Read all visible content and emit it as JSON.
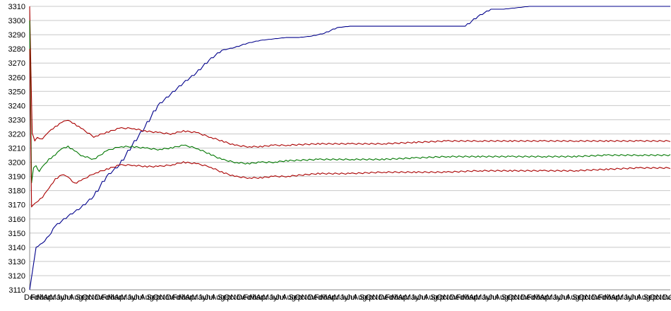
{
  "chart_data": {
    "type": "line",
    "title": "",
    "xlabel": "",
    "ylabel": "",
    "ylim": [
      3110,
      3310
    ],
    "y_ticks": [
      3110,
      3120,
      3130,
      3140,
      3150,
      3160,
      3170,
      3180,
      3190,
      3200,
      3210,
      3220,
      3230,
      3240,
      3250,
      3260,
      3270,
      3280,
      3290,
      3300,
      3310
    ],
    "x_tick_labels": [
      "Dec",
      "Feb",
      "Mar",
      "Apr",
      "May",
      "Jun",
      "Jul",
      "Aug",
      "Sep",
      "Oct",
      "Nov",
      "Dec",
      "Feb",
      "Mar",
      "Apr",
      "May",
      "Jun",
      "Jul",
      "Aug",
      "Sep",
      "Oct",
      "Nov",
      "Dec",
      "Feb",
      "Mar",
      "Apr",
      "May",
      "Jun",
      "Jul",
      "Aug",
      "Sep",
      "Oct",
      "Nov",
      "Dec",
      "Feb",
      "Mar",
      "Apr",
      "May",
      "Jun",
      "Jul",
      "Aug",
      "Sep",
      "Oct",
      "Nov",
      "Dec",
      "Feb",
      "Mar",
      "Apr",
      "May",
      "Jun",
      "Jul",
      "Aug",
      "Sep",
      "Oct",
      "Nov",
      "Dec",
      "Feb",
      "Mar",
      "Apr",
      "May",
      "Jun",
      "Jul",
      "Aug",
      "Sep",
      "Oct",
      "Nov",
      "Dec",
      "Feb",
      "Mar",
      "Apr",
      "May",
      "Jun",
      "Jul",
      "Aug",
      "Sep",
      "Oct",
      "Nov",
      "Dec",
      "Feb",
      "Mar",
      "Apr",
      "May",
      "Jun",
      "Jul",
      "Aug",
      "Sep",
      "Oct",
      "Nov",
      "Dec",
      "Feb",
      "Mar",
      "Apr",
      "May",
      "Jun",
      "Jul",
      "Aug",
      "Sep",
      "Oct",
      "Nov",
      "Dec",
      "Jan"
    ],
    "x_range": [
      0,
      100
    ],
    "grid": "horizontal",
    "legend": "none",
    "series": [
      {
        "color": "#00008b",
        "x": [
          0,
          0.5,
          1,
          2,
          3,
          4,
          6,
          8,
          10,
          12,
          14,
          16,
          18,
          20,
          22,
          24,
          26,
          28,
          30,
          32,
          34,
          36,
          38,
          40,
          42,
          44,
          46,
          48,
          50,
          52,
          54,
          56,
          58,
          60,
          62,
          64,
          66,
          68,
          70,
          72,
          74,
          76,
          78,
          80,
          85,
          90,
          95,
          100
        ],
        "y": [
          3110,
          3125,
          3140,
          3143,
          3148,
          3155,
          3162,
          3168,
          3176,
          3190,
          3198,
          3212,
          3225,
          3240,
          3248,
          3256,
          3263,
          3272,
          3279,
          3281,
          3284,
          3286,
          3287,
          3288,
          3288,
          3289,
          3291,
          3295,
          3296,
          3296,
          3296,
          3296,
          3296,
          3296,
          3296,
          3296,
          3296,
          3296,
          3303,
          3308,
          3308,
          3309,
          3310,
          3310,
          3310,
          3310,
          3310,
          3310
        ]
      },
      {
        "color": "#aa0000",
        "x": [
          0,
          0.4,
          0.8,
          1.2,
          2,
          3,
          4,
          5,
          6,
          7,
          8,
          10,
          12,
          14,
          16,
          18,
          20,
          22,
          24,
          26,
          28,
          30,
          32,
          34,
          36,
          38,
          40,
          45,
          50,
          55,
          60,
          65,
          70,
          75,
          80,
          85,
          90,
          95,
          100
        ],
        "y": [
          3310,
          3220,
          3215,
          3218,
          3216,
          3222,
          3225,
          3228,
          3230,
          3227,
          3224,
          3218,
          3221,
          3224,
          3224,
          3222,
          3221,
          3220,
          3222,
          3221,
          3218,
          3215,
          3212,
          3211,
          3211,
          3212,
          3212,
          3213,
          3213,
          3213,
          3214,
          3215,
          3215,
          3215,
          3215,
          3215,
          3215,
          3215,
          3215
        ]
      },
      {
        "color": "#007700",
        "x": [
          0,
          0.3,
          0.6,
          1,
          1.5,
          2,
          3,
          4,
          5,
          6,
          7,
          8,
          10,
          12,
          14,
          16,
          18,
          20,
          22,
          24,
          26,
          28,
          30,
          32,
          34,
          36,
          38,
          40,
          45,
          50,
          55,
          60,
          65,
          70,
          75,
          80,
          85,
          90,
          95,
          100
        ],
        "y": [
          3300,
          3185,
          3196,
          3198,
          3193,
          3197,
          3202,
          3205,
          3210,
          3211,
          3208,
          3205,
          3202,
          3208,
          3211,
          3211,
          3210,
          3209,
          3210,
          3212,
          3210,
          3206,
          3202,
          3200,
          3199,
          3200,
          3200,
          3201,
          3202,
          3202,
          3202,
          3203,
          3204,
          3204,
          3204,
          3204,
          3204,
          3205,
          3205,
          3205
        ]
      },
      {
        "color": "#aa0000",
        "x": [
          0,
          0.3,
          0.6,
          1,
          2,
          3,
          4,
          5,
          6,
          7,
          8,
          10,
          12,
          14,
          16,
          18,
          20,
          22,
          24,
          26,
          28,
          30,
          32,
          34,
          36,
          38,
          40,
          45,
          50,
          55,
          60,
          65,
          70,
          75,
          80,
          85,
          90,
          95,
          100
        ],
        "y": [
          3280,
          3168,
          3170,
          3172,
          3175,
          3182,
          3188,
          3191,
          3190,
          3185,
          3187,
          3192,
          3195,
          3198,
          3198,
          3197,
          3197,
          3198,
          3200,
          3199,
          3197,
          3193,
          3190,
          3189,
          3189,
          3190,
          3190,
          3192,
          3192,
          3193,
          3193,
          3193,
          3194,
          3194,
          3194,
          3194,
          3195,
          3196,
          3196
        ]
      }
    ]
  }
}
